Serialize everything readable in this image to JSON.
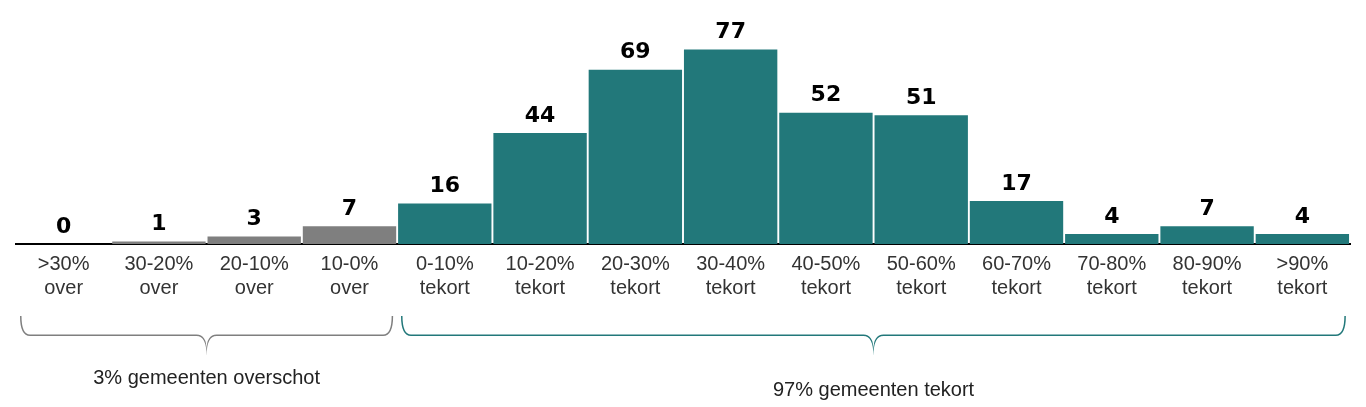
{
  "chart_data": {
    "type": "bar",
    "categories": [
      ">30% over",
      "30-20% over",
      "20-10% over",
      "10-0% over",
      "0-10% tekort",
      "10-20% tekort",
      "20-30% tekort",
      "30-40% tekort",
      "40-50% tekort",
      "50-60% tekort",
      "60-70% tekort",
      "70-80% tekort",
      "80-90% tekort",
      ">90% tekort"
    ],
    "values": [
      0,
      1,
      3,
      7,
      16,
      44,
      69,
      77,
      52,
      51,
      17,
      4,
      7,
      4
    ],
    "colors": [
      "#7f7f7f",
      "#7f7f7f",
      "#7f7f7f",
      "#7f7f7f",
      "#22787a",
      "#22787a",
      "#22787a",
      "#22787a",
      "#22787a",
      "#22787a",
      "#22787a",
      "#22787a",
      "#22787a",
      "#22787a"
    ],
    "data_labels": true,
    "grid": false,
    "legend": false,
    "annotations": [
      "3% gemeenten overschot",
      "97% gemeenten tekort"
    ]
  }
}
